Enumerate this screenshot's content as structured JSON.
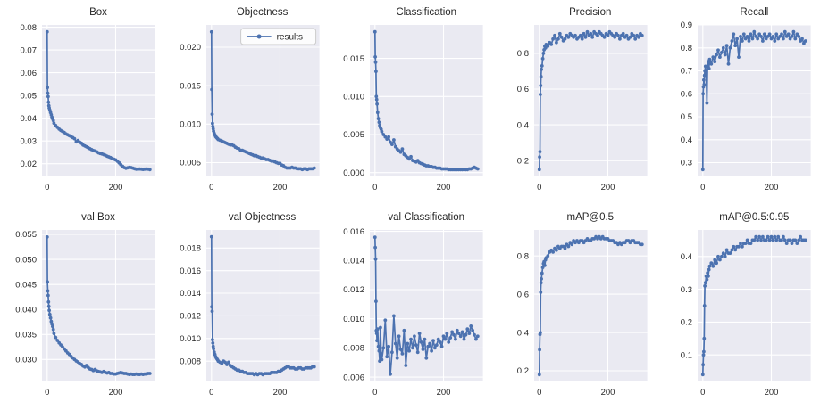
{
  "figure": {
    "background_color": "#ffffff",
    "axes_background_color": "#eaeaf2",
    "grid_color": "#ffffff",
    "series_color": "#4c72b0",
    "text_color": "#262626"
  },
  "legend": {
    "label": "results",
    "shown_on": "Objectness",
    "position": "upper right"
  },
  "epochs": [
    0,
    1,
    2,
    3,
    4,
    5,
    6,
    8,
    10,
    12,
    14,
    16,
    18,
    20,
    25,
    30,
    35,
    40,
    45,
    50,
    55,
    60,
    65,
    70,
    75,
    80,
    85,
    90,
    95,
    100,
    105,
    110,
    115,
    120,
    125,
    130,
    135,
    140,
    145,
    150,
    155,
    160,
    165,
    170,
    175,
    180,
    185,
    190,
    195,
    200,
    205,
    210,
    215,
    220,
    225,
    230,
    235,
    240,
    245,
    250,
    255,
    260,
    265,
    270,
    275,
    280,
    285,
    290,
    295,
    300
  ],
  "chart_data": [
    {
      "type": "line",
      "title": "Box",
      "grid": true,
      "show_legend": false,
      "xlim": [
        -15,
        315
      ],
      "ylim": [
        0.0144,
        0.081
      ],
      "xticks": [
        0,
        200
      ],
      "xticklabels": [
        "0",
        "200"
      ],
      "yticks": [
        0.02,
        0.03,
        0.04,
        0.05,
        0.06,
        0.07,
        0.08
      ],
      "yticklabels": [
        "0.02",
        "0.03",
        "0.04",
        "0.05",
        "0.06",
        "0.07",
        "0.08"
      ],
      "y": [
        0.078,
        0.0535,
        0.051,
        0.0495,
        0.047,
        0.0455,
        0.0445,
        0.0435,
        0.0425,
        0.0415,
        0.0405,
        0.0398,
        0.039,
        0.0378,
        0.0368,
        0.036,
        0.0352,
        0.0346,
        0.0342,
        0.0337,
        0.0331,
        0.0327,
        0.0323,
        0.032,
        0.0315,
        0.031,
        0.0296,
        0.0302,
        0.0295,
        0.029,
        0.0282,
        0.0278,
        0.0274,
        0.027,
        0.0266,
        0.0262,
        0.0258,
        0.0256,
        0.0252,
        0.0248,
        0.0245,
        0.0243,
        0.024,
        0.0237,
        0.0233,
        0.023,
        0.0227,
        0.0223,
        0.022,
        0.0217,
        0.0211,
        0.0204,
        0.0196,
        0.0189,
        0.0183,
        0.018,
        0.0182,
        0.0184,
        0.0183,
        0.0181,
        0.0178,
        0.0176,
        0.0176,
        0.0177,
        0.0176,
        0.0175,
        0.0176,
        0.0177,
        0.0176,
        0.0174
      ]
    },
    {
      "type": "line",
      "title": "Objectness",
      "grid": true,
      "show_legend": true,
      "xlim": [
        -15,
        315
      ],
      "ylim": [
        0.0032,
        0.0229
      ],
      "xticks": [
        0,
        200
      ],
      "xticklabels": [
        "0",
        "200"
      ],
      "yticks": [
        0.005,
        0.01,
        0.015,
        0.02
      ],
      "yticklabels": [
        "0.005",
        "0.010",
        "0.015",
        "0.020"
      ],
      "y": [
        0.022,
        0.0145,
        0.0113,
        0.0101,
        0.0097,
        0.0094,
        0.0091,
        0.0088,
        0.0086,
        0.0084,
        0.0083,
        0.0082,
        0.0081,
        0.008,
        0.0079,
        0.0078,
        0.0077,
        0.0076,
        0.0075,
        0.0074,
        0.0073,
        0.0073,
        0.0072,
        0.007,
        0.0069,
        0.0068,
        0.0066,
        0.0066,
        0.0065,
        0.0064,
        0.0063,
        0.0062,
        0.0061,
        0.006,
        0.0059,
        0.0059,
        0.0058,
        0.0057,
        0.0056,
        0.0056,
        0.0055,
        0.0054,
        0.0054,
        0.0053,
        0.0052,
        0.0052,
        0.0051,
        0.005,
        0.0049,
        0.0049,
        0.0047,
        0.0046,
        0.0044,
        0.0043,
        0.0043,
        0.0043,
        0.0044,
        0.0043,
        0.0043,
        0.0042,
        0.0042,
        0.0042,
        0.0041,
        0.0042,
        0.0042,
        0.0041,
        0.0042,
        0.0042,
        0.0042,
        0.0043
      ]
    },
    {
      "type": "line",
      "title": "Classification",
      "grid": true,
      "show_legend": false,
      "xlim": [
        -15,
        315
      ],
      "ylim": [
        -0.0005,
        0.0194
      ],
      "xticks": [
        0,
        200
      ],
      "xticklabels": [
        "0",
        "200"
      ],
      "yticks": [
        0.0,
        0.005,
        0.01,
        0.015
      ],
      "yticklabels": [
        "0.000",
        "0.005",
        "0.010",
        "0.015"
      ],
      "y": [
        0.0185,
        0.0152,
        0.0145,
        0.0133,
        0.01,
        0.0096,
        0.009,
        0.0079,
        0.0071,
        0.0066,
        0.0062,
        0.0059,
        0.0057,
        0.0054,
        0.005,
        0.0047,
        0.0044,
        0.0047,
        0.004,
        0.0037,
        0.0043,
        0.0034,
        0.0031,
        0.0029,
        0.0027,
        0.0031,
        0.0024,
        0.0022,
        0.002,
        0.0018,
        0.0021,
        0.0016,
        0.0015,
        0.0014,
        0.0016,
        0.0013,
        0.0012,
        0.0011,
        0.001,
        0.0009,
        0.0009,
        0.0008,
        0.0008,
        0.0007,
        0.0007,
        0.0006,
        0.0006,
        0.0006,
        0.0005,
        0.0005,
        0.0005,
        0.0005,
        0.0004,
        0.0004,
        0.0004,
        0.0004,
        0.0004,
        0.0004,
        0.0004,
        0.0004,
        0.0004,
        0.0004,
        0.0004,
        0.0004,
        0.0005,
        0.0005,
        0.0006,
        0.0007,
        0.0006,
        0.0005
      ]
    },
    {
      "type": "line",
      "title": "Precision",
      "grid": true,
      "show_legend": false,
      "xlim": [
        -15,
        315
      ],
      "ylim": [
        0.111,
        0.959
      ],
      "xticks": [
        0,
        200
      ],
      "xticklabels": [
        "0",
        "200"
      ],
      "yticks": [
        0.2,
        0.4,
        0.6,
        0.8
      ],
      "yticklabels": [
        "0.2",
        "0.4",
        "0.6",
        "0.8"
      ],
      "y": [
        0.15,
        0.22,
        0.25,
        0.57,
        0.62,
        0.67,
        0.71,
        0.73,
        0.77,
        0.8,
        0.82,
        0.84,
        0.83,
        0.85,
        0.84,
        0.86,
        0.85,
        0.88,
        0.9,
        0.86,
        0.88,
        0.91,
        0.89,
        0.87,
        0.88,
        0.9,
        0.89,
        0.91,
        0.9,
        0.89,
        0.9,
        0.88,
        0.89,
        0.9,
        0.88,
        0.91,
        0.89,
        0.92,
        0.9,
        0.91,
        0.89,
        0.92,
        0.91,
        0.9,
        0.92,
        0.91,
        0.9,
        0.89,
        0.91,
        0.9,
        0.92,
        0.91,
        0.9,
        0.89,
        0.91,
        0.9,
        0.88,
        0.9,
        0.91,
        0.89,
        0.9,
        0.88,
        0.89,
        0.91,
        0.9,
        0.88,
        0.9,
        0.89,
        0.91,
        0.9
      ]
    },
    {
      "type": "line",
      "title": "Recall",
      "grid": true,
      "show_legend": false,
      "xlim": [
        -15,
        315
      ],
      "ylim": [
        0.24,
        0.9
      ],
      "xticks": [
        0,
        200
      ],
      "xticklabels": [
        "0",
        "200"
      ],
      "yticks": [
        0.3,
        0.4,
        0.5,
        0.6,
        0.7,
        0.8,
        0.9
      ],
      "yticklabels": [
        "0.3",
        "0.4",
        "0.5",
        "0.6",
        "0.7",
        "0.8",
        "0.9"
      ],
      "y": [
        0.27,
        0.6,
        0.63,
        0.66,
        0.64,
        0.68,
        0.7,
        0.72,
        0.69,
        0.56,
        0.72,
        0.74,
        0.71,
        0.75,
        0.73,
        0.76,
        0.74,
        0.77,
        0.79,
        0.76,
        0.78,
        0.8,
        0.77,
        0.81,
        0.73,
        0.8,
        0.83,
        0.86,
        0.81,
        0.84,
        0.76,
        0.85,
        0.83,
        0.86,
        0.84,
        0.85,
        0.83,
        0.86,
        0.84,
        0.87,
        0.85,
        0.84,
        0.86,
        0.85,
        0.83,
        0.86,
        0.84,
        0.85,
        0.86,
        0.84,
        0.85,
        0.83,
        0.86,
        0.84,
        0.85,
        0.86,
        0.84,
        0.87,
        0.85,
        0.86,
        0.84,
        0.85,
        0.87,
        0.84,
        0.86,
        0.85,
        0.83,
        0.84,
        0.82,
        0.83
      ]
    },
    {
      "type": "line",
      "title": "val Box",
      "grid": true,
      "show_legend": false,
      "xlim": [
        -15,
        315
      ],
      "ylim": [
        0.0256,
        0.0559
      ],
      "xticks": [
        0,
        200
      ],
      "xticklabels": [
        "0",
        "200"
      ],
      "yticks": [
        0.03,
        0.035,
        0.04,
        0.045,
        0.05,
        0.055
      ],
      "yticklabels": [
        "0.030",
        "0.035",
        "0.040",
        "0.045",
        "0.050",
        "0.055"
      ],
      "y": [
        0.0545,
        0.0455,
        0.0437,
        0.0428,
        0.0415,
        0.0406,
        0.0398,
        0.039,
        0.0383,
        0.0376,
        0.0371,
        0.0366,
        0.036,
        0.0352,
        0.0344,
        0.0338,
        0.0333,
        0.0329,
        0.0325,
        0.0321,
        0.0317,
        0.0313,
        0.031,
        0.0306,
        0.0303,
        0.03,
        0.0297,
        0.0295,
        0.0292,
        0.029,
        0.0287,
        0.0285,
        0.0288,
        0.0284,
        0.0281,
        0.028,
        0.0278,
        0.028,
        0.0277,
        0.0276,
        0.0275,
        0.0274,
        0.0276,
        0.0274,
        0.0273,
        0.0274,
        0.0272,
        0.0272,
        0.0271,
        0.0271,
        0.0272,
        0.0273,
        0.0274,
        0.0273,
        0.0272,
        0.0272,
        0.0271,
        0.027,
        0.0271,
        0.027,
        0.027,
        0.0271,
        0.027,
        0.027,
        0.0271,
        0.027,
        0.0271,
        0.0271,
        0.0272,
        0.0272
      ]
    },
    {
      "type": "line",
      "title": "val Objectness",
      "grid": true,
      "show_legend": false,
      "xlim": [
        -15,
        315
      ],
      "ylim": [
        0.0062,
        0.0196
      ],
      "xticks": [
        0,
        200
      ],
      "xticklabels": [
        "0",
        "200"
      ],
      "yticks": [
        0.008,
        0.01,
        0.012,
        0.014,
        0.016,
        0.018
      ],
      "yticklabels": [
        "0.008",
        "0.010",
        "0.012",
        "0.014",
        "0.016",
        "0.018"
      ],
      "y": [
        0.019,
        0.0128,
        0.0124,
        0.0099,
        0.0096,
        0.0093,
        0.0091,
        0.0088,
        0.0086,
        0.0084,
        0.0083,
        0.0082,
        0.0081,
        0.008,
        0.0079,
        0.0078,
        0.008,
        0.0079,
        0.0077,
        0.0079,
        0.0076,
        0.0075,
        0.0074,
        0.0073,
        0.0072,
        0.0072,
        0.0071,
        0.0071,
        0.007,
        0.007,
        0.0069,
        0.0069,
        0.0069,
        0.0069,
        0.0068,
        0.0069,
        0.0068,
        0.0069,
        0.0069,
        0.0068,
        0.0069,
        0.0069,
        0.0069,
        0.0069,
        0.007,
        0.007,
        0.007,
        0.007,
        0.0071,
        0.0071,
        0.0072,
        0.0073,
        0.0074,
        0.0075,
        0.0075,
        0.0074,
        0.0074,
        0.0074,
        0.0073,
        0.0073,
        0.0074,
        0.0074,
        0.0073,
        0.0073,
        0.0074,
        0.0074,
        0.0074,
        0.0074,
        0.0075,
        0.0075
      ]
    },
    {
      "type": "line",
      "title": "val Classification",
      "grid": true,
      "show_legend": false,
      "xlim": [
        -15,
        315
      ],
      "ylim": [
        0.0057,
        0.0161
      ],
      "xticks": [
        0,
        200
      ],
      "xticklabels": [
        "0",
        "200"
      ],
      "yticks": [
        0.006,
        0.008,
        0.01,
        0.012,
        0.014,
        0.016
      ],
      "yticklabels": [
        "0.006",
        "0.008",
        "0.010",
        "0.012",
        "0.014",
        "0.016"
      ],
      "y": [
        0.0156,
        0.0149,
        0.0141,
        0.0112,
        0.0092,
        0.009,
        0.0085,
        0.0093,
        0.0081,
        0.0078,
        0.0071,
        0.0094,
        0.0076,
        0.0072,
        0.008,
        0.0099,
        0.0074,
        0.0081,
        0.0062,
        0.0077,
        0.0102,
        0.0083,
        0.0073,
        0.0088,
        0.0079,
        0.0076,
        0.0092,
        0.0068,
        0.0083,
        0.0078,
        0.0086,
        0.008,
        0.0088,
        0.0082,
        0.0077,
        0.009,
        0.0084,
        0.0079,
        0.0086,
        0.0073,
        0.0081,
        0.0083,
        0.0078,
        0.0085,
        0.008,
        0.0082,
        0.0086,
        0.0084,
        0.0081,
        0.0088,
        0.0086,
        0.009,
        0.0084,
        0.0087,
        0.0091,
        0.0089,
        0.0086,
        0.0092,
        0.009,
        0.0088,
        0.0091,
        0.0086,
        0.0089,
        0.0093,
        0.009,
        0.0095,
        0.0092,
        0.0089,
        0.0086,
        0.0088
      ]
    },
    {
      "type": "line",
      "title": "mAP@0.5",
      "grid": true,
      "show_legend": false,
      "xlim": [
        -15,
        315
      ],
      "ylim": [
        0.144,
        0.936
      ],
      "xticks": [
        0,
        200
      ],
      "xticklabels": [
        "0",
        "200"
      ],
      "yticks": [
        0.2,
        0.4,
        0.6,
        0.8
      ],
      "yticklabels": [
        "0.2",
        "0.4",
        "0.6",
        "0.8"
      ],
      "y": [
        0.18,
        0.31,
        0.39,
        0.4,
        0.61,
        0.66,
        0.68,
        0.71,
        0.74,
        0.76,
        0.77,
        0.75,
        0.78,
        0.79,
        0.8,
        0.82,
        0.83,
        0.82,
        0.84,
        0.83,
        0.85,
        0.84,
        0.85,
        0.85,
        0.84,
        0.86,
        0.85,
        0.87,
        0.86,
        0.88,
        0.87,
        0.88,
        0.87,
        0.88,
        0.88,
        0.87,
        0.88,
        0.89,
        0.88,
        0.88,
        0.89,
        0.89,
        0.9,
        0.89,
        0.9,
        0.89,
        0.9,
        0.89,
        0.89,
        0.89,
        0.88,
        0.88,
        0.88,
        0.87,
        0.87,
        0.86,
        0.87,
        0.86,
        0.87,
        0.87,
        0.88,
        0.88,
        0.87,
        0.88,
        0.88,
        0.87,
        0.87,
        0.87,
        0.86,
        0.86
      ]
    },
    {
      "type": "line",
      "title": "mAP@0.5:0.95",
      "grid": true,
      "show_legend": false,
      "xlim": [
        -15,
        315
      ],
      "ylim": [
        0.019,
        0.481
      ],
      "xticks": [
        0,
        200
      ],
      "xticklabels": [
        "0",
        "200"
      ],
      "yticks": [
        0.1,
        0.2,
        0.3,
        0.4
      ],
      "yticklabels": [
        "0.1",
        "0.2",
        "0.3",
        "0.4"
      ],
      "y": [
        0.04,
        0.07,
        0.1,
        0.11,
        0.15,
        0.25,
        0.31,
        0.32,
        0.34,
        0.33,
        0.35,
        0.34,
        0.36,
        0.37,
        0.38,
        0.37,
        0.39,
        0.38,
        0.4,
        0.39,
        0.4,
        0.41,
        0.4,
        0.42,
        0.41,
        0.41,
        0.42,
        0.43,
        0.42,
        0.43,
        0.43,
        0.44,
        0.43,
        0.44,
        0.44,
        0.45,
        0.44,
        0.44,
        0.45,
        0.45,
        0.46,
        0.45,
        0.46,
        0.45,
        0.46,
        0.45,
        0.45,
        0.46,
        0.45,
        0.46,
        0.45,
        0.46,
        0.45,
        0.46,
        0.45,
        0.45,
        0.46,
        0.45,
        0.44,
        0.45,
        0.45,
        0.44,
        0.45,
        0.45,
        0.44,
        0.45,
        0.46,
        0.45,
        0.45,
        0.45
      ]
    }
  ]
}
